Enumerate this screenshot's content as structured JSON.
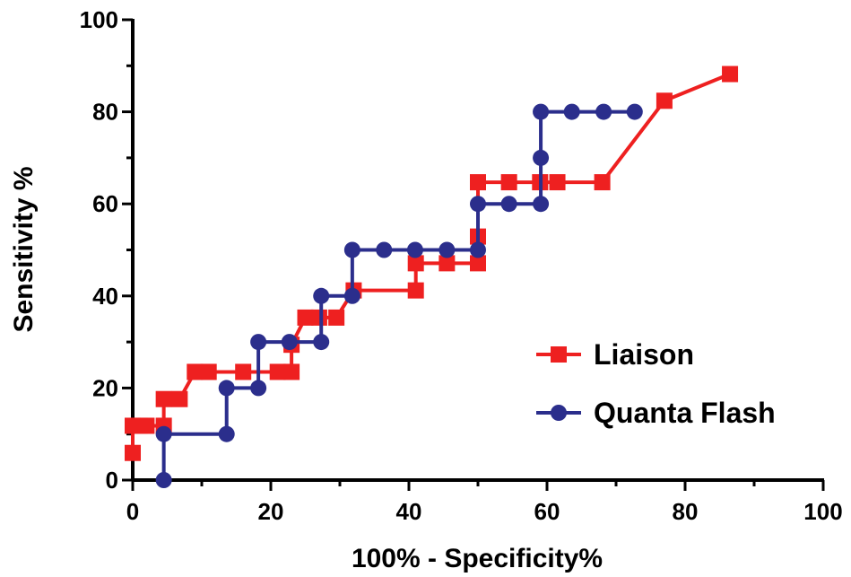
{
  "chart_data": {
    "type": "line",
    "title": "",
    "xlabel": "100% - Specificity%",
    "ylabel": "Sensitivity %",
    "xlim": [
      0,
      100
    ],
    "ylim": [
      0,
      100
    ],
    "x_ticks": [
      "0",
      "20",
      "40",
      "60",
      "80",
      "100"
    ],
    "y_ticks": [
      "0",
      "20",
      "40",
      "60",
      "80",
      "100"
    ],
    "grid": false,
    "legend_position": "bottom-right",
    "series": [
      {
        "name": "Liaison",
        "color": "#ee2020",
        "marker": "square",
        "x": [
          0,
          0,
          1,
          2,
          4.5,
          4.5,
          6.8,
          9,
          11,
          16,
          21,
          23,
          23,
          25,
          27,
          29.5,
          32,
          41,
          41,
          45.5,
          50,
          50,
          50,
          54.5,
          59,
          61.5,
          68,
          77,
          86.5
        ],
        "y": [
          5.9,
          11.8,
          11.8,
          11.8,
          11.8,
          17.6,
          17.6,
          23.5,
          23.5,
          23.5,
          23.5,
          23.5,
          29.4,
          35.3,
          35.3,
          35.3,
          41.2,
          41.2,
          47.1,
          47.1,
          47.1,
          52.9,
          64.7,
          64.7,
          64.7,
          64.7,
          64.7,
          82.4,
          88.2
        ]
      },
      {
        "name": "Quanta Flash",
        "color": "#2b2e8c",
        "marker": "circle",
        "x": [
          4.5,
          4.5,
          13.6,
          13.6,
          18.2,
          18.2,
          22.7,
          27.3,
          27.3,
          31.8,
          31.8,
          36.4,
          40.9,
          45.5,
          50,
          50,
          54.5,
          59.1,
          59.1,
          59.1,
          63.6,
          68.2,
          72.7
        ],
        "y": [
          0,
          10,
          10,
          20,
          20,
          30,
          30,
          30,
          40,
          40,
          50,
          50,
          50,
          50,
          50,
          60,
          60,
          60,
          70,
          80,
          80,
          80,
          80
        ]
      }
    ]
  }
}
